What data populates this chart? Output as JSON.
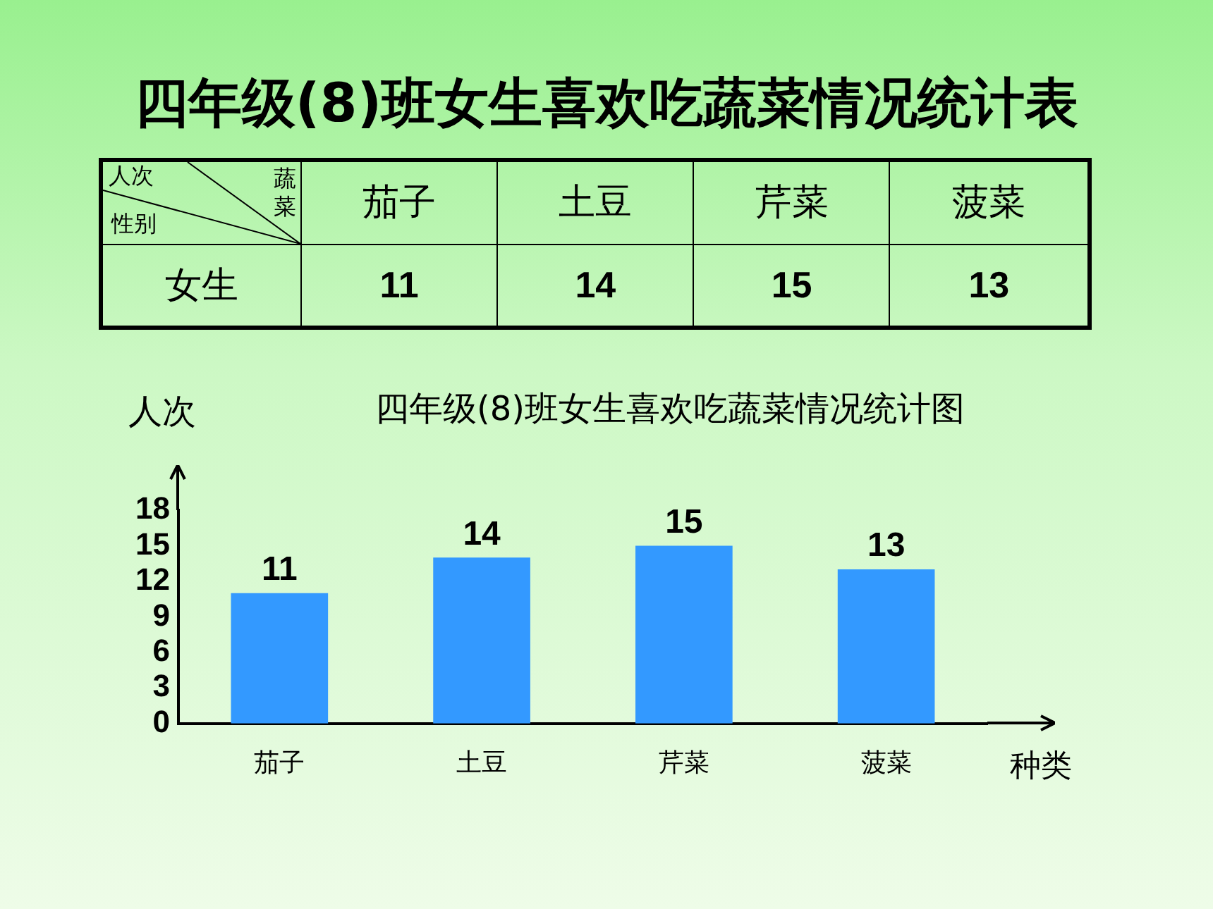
{
  "chart_data": [
    {
      "type": "other",
      "title": "四年级(8)班女生喜欢吃蔬菜情况统计表",
      "annotations": [
        "人次",
        "蔬菜",
        "性别",
        "女生"
      ],
      "categories": [
        "茄子",
        "土豆",
        "芹菜",
        "菠菜"
      ],
      "value_labels": [
        "11",
        "14",
        "15",
        "13"
      ]
    },
    {
      "type": "bar",
      "title": "四年级(8)班女生喜欢吃蔬菜情况统计图",
      "xlabel": "种类",
      "ylabel": "人次",
      "categories": [
        "茄子",
        "土豆",
        "芹菜",
        "菠菜"
      ],
      "values": [
        11,
        14,
        15,
        13
      ],
      "color": "#3399ff",
      "ylim": [
        0,
        18
      ],
      "yticks": [
        0,
        3,
        6,
        9,
        12,
        15,
        18
      ],
      "grid": false,
      "data_labels": true,
      "legend": false
    }
  ]
}
